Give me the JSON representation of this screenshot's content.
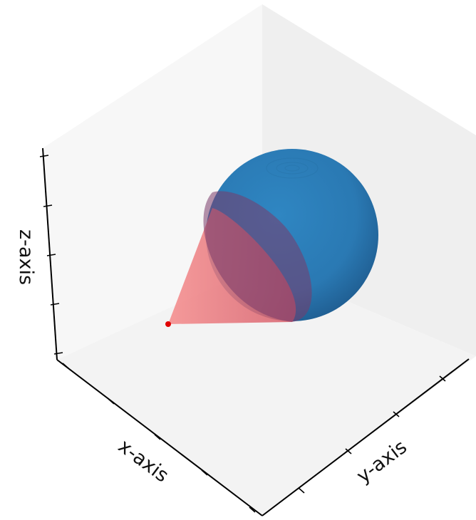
{
  "chart_data": {
    "type": "3d-surface",
    "title": "",
    "xlabel": "x-axis",
    "ylabel": "y-axis",
    "zlabel": "z-axis",
    "tick_labels_visible": false,
    "grid": false,
    "series": [
      {
        "type": "sphere",
        "color": "#2a77b0"
      },
      {
        "type": "cone",
        "color": "#f26a6a"
      },
      {
        "type": "point",
        "color": "#e00000"
      }
    ]
  }
}
